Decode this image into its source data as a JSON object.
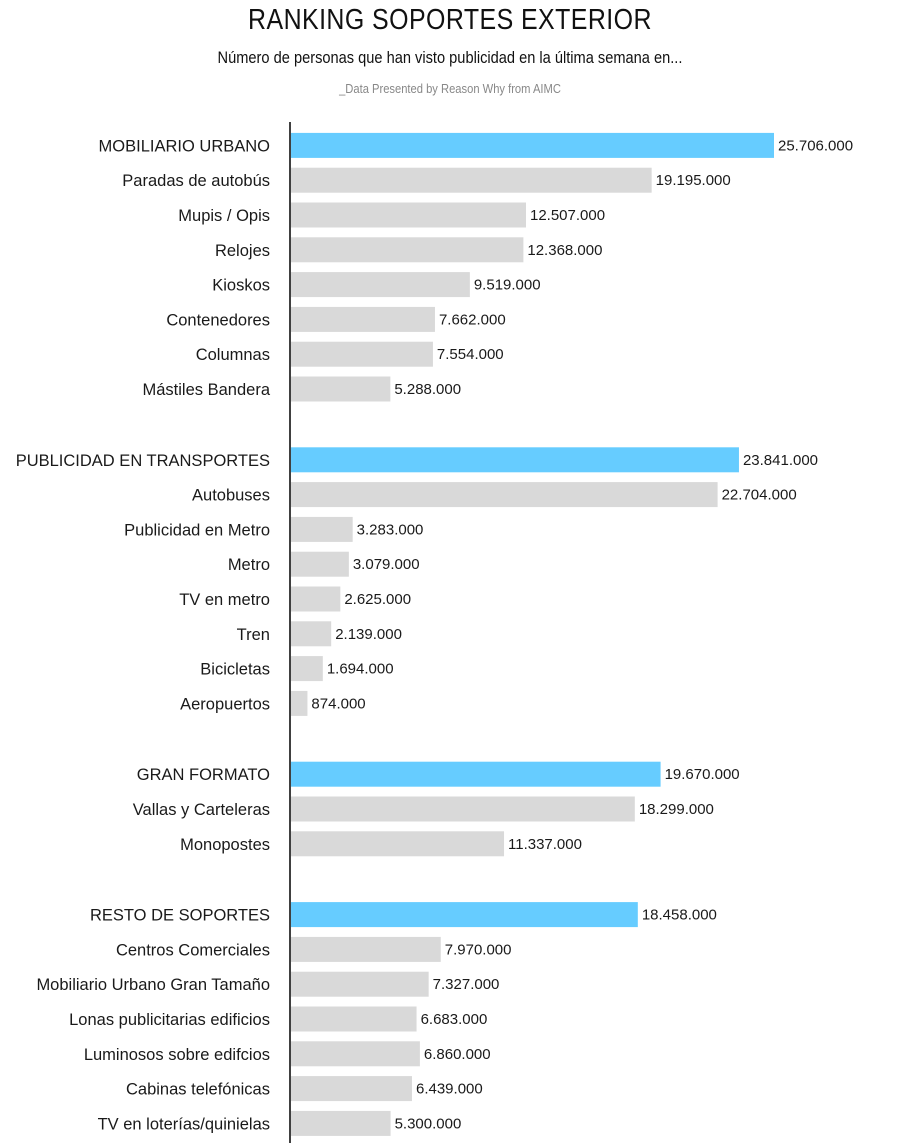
{
  "chart_data": {
    "type": "bar",
    "orientation": "horizontal",
    "title": "RANKING SOPORTES EXTERIOR",
    "subtitle": "Número de personas que han visto publicidad en la última semana en...",
    "source": "_Data Presented by Reason Why from AIMC",
    "colors": {
      "group": "#66ccff",
      "item": "#d9d9d9",
      "axis": "#000000"
    },
    "xlim": [
      0,
      27000000
    ],
    "groups": [
      {
        "label": "MOBILIARIO URBANO",
        "value": 25706000,
        "value_label": "25.706.000",
        "items": [
          {
            "label": "Paradas de autobús",
            "value": 19195000,
            "value_label": "19.195.000"
          },
          {
            "label": "Mupis / Opis",
            "value": 12507000,
            "value_label": "12.507.000"
          },
          {
            "label": "Relojes",
            "value": 12368000,
            "value_label": "12.368.000"
          },
          {
            "label": "Kioskos",
            "value": 9519000,
            "value_label": "9.519.000"
          },
          {
            "label": "Contenedores",
            "value": 7662000,
            "value_label": "7.662.000"
          },
          {
            "label": "Columnas",
            "value": 7554000,
            "value_label": "7.554.000"
          },
          {
            "label": "Mástiles Bandera",
            "value": 5288000,
            "value_label": "5.288.000"
          }
        ]
      },
      {
        "label": "PUBLICIDAD EN TRANSPORTES",
        "value": 23841000,
        "value_label": "23.841.000",
        "items": [
          {
            "label": "Autobuses",
            "value": 22704000,
            "value_label": "22.704.000"
          },
          {
            "label": "Publicidad en Metro",
            "value": 3283000,
            "value_label": "3.283.000"
          },
          {
            "label": "Metro",
            "value": 3079000,
            "value_label": "3.079.000"
          },
          {
            "label": "TV en metro",
            "value": 2625000,
            "value_label": "2.625.000"
          },
          {
            "label": "Tren",
            "value": 2139000,
            "value_label": "2.139.000"
          },
          {
            "label": "Bicicletas",
            "value": 1694000,
            "value_label": "1.694.000"
          },
          {
            "label": "Aeropuertos",
            "value": 874000,
            "value_label": "874.000"
          }
        ]
      },
      {
        "label": "GRAN FORMATO",
        "value": 19670000,
        "value_label": "19.670.000",
        "items": [
          {
            "label": "Vallas y Carteleras",
            "value": 18299000,
            "value_label": "18.299.000"
          },
          {
            "label": "Monopostes",
            "value": 11337000,
            "value_label": "11.337.000"
          }
        ]
      },
      {
        "label": "RESTO DE SOPORTES",
        "value": 18458000,
        "value_label": "18.458.000",
        "items": [
          {
            "label": "Centros Comerciales",
            "value": 7970000,
            "value_label": "7.970.000"
          },
          {
            "label": "Mobiliario Urbano Gran Tamaño",
            "value": 7327000,
            "value_label": "7.327.000"
          },
          {
            "label": "Lonas publicitarias edificios",
            "value": 6683000,
            "value_label": "6.683.000"
          },
          {
            "label": "Luminosos sobre edifcios",
            "value": 6860000,
            "value_label": "6.860.000"
          },
          {
            "label": "Cabinas telefónicas",
            "value": 6439000,
            "value_label": "6.439.000"
          },
          {
            "label": "TV en loterías/quinielas",
            "value": 5300000,
            "value_label": "5.300.000"
          }
        ]
      }
    ]
  }
}
